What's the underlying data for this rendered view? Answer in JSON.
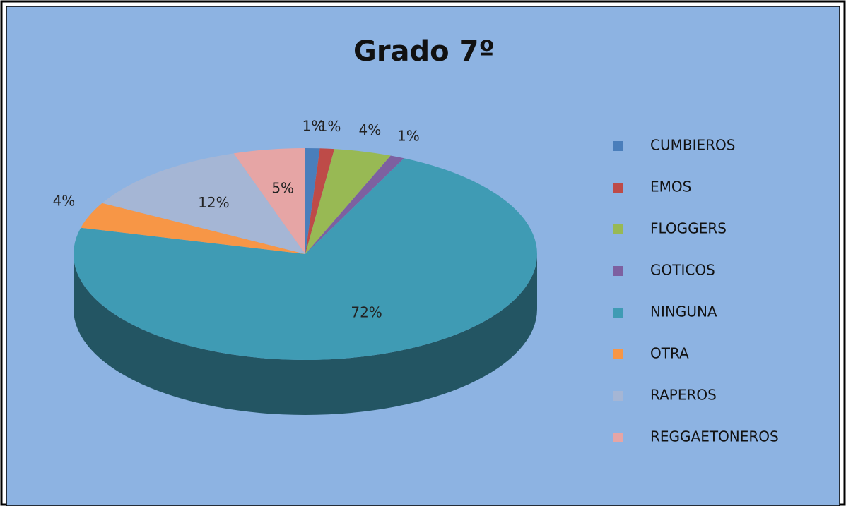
{
  "chart_data": {
    "type": "pie",
    "title": "Grado 7º",
    "categories": [
      "CUMBIEROS",
      "EMOS",
      "FLOGGERS",
      "GOTICOS",
      "NINGUNA",
      "OTRA",
      "RAPEROS",
      "REGGAETONEROS"
    ],
    "values": [
      1,
      1,
      4,
      1,
      72,
      4,
      12,
      5
    ],
    "value_labels": [
      "1%",
      "1%",
      "4%",
      "1%",
      "72%",
      "4%",
      "12%",
      "5%"
    ],
    "colors": [
      "#4a7ebb",
      "#be4b48",
      "#98b954",
      "#7d60a0",
      "#3f9bb4",
      "#f79646",
      "#a5b6d5",
      "#e6a5a5"
    ],
    "legend": "right"
  }
}
